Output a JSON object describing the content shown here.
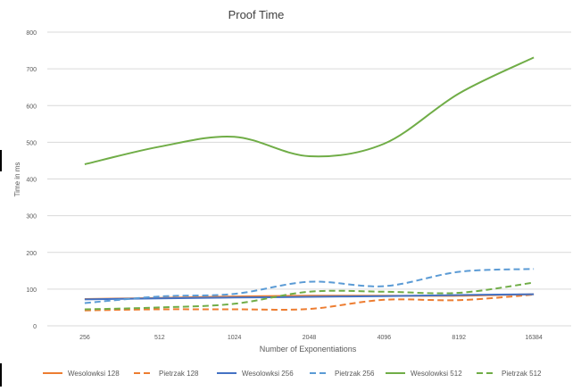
{
  "chart_data": {
    "type": "line",
    "title": "Proof Time",
    "xlabel": "Number of Exponentiations",
    "ylabel": "Time in ms",
    "categories": [
      "256",
      "512",
      "1024",
      "2048",
      "4096",
      "8192",
      "16384"
    ],
    "y_ticks": [
      "0",
      "100",
      "200",
      "300",
      "400",
      "500",
      "600",
      "700",
      "800"
    ],
    "ylim": [
      0,
      800
    ],
    "grid": true,
    "legend_position": "bottom",
    "series": [
      {
        "name": "Wesolowksi 128",
        "color": "#ed7d31",
        "dash": "solid",
        "values": [
          73,
          76,
          80,
          82,
          82,
          82,
          86
        ]
      },
      {
        "name": "Pietrzak 128",
        "color": "#ed7d31",
        "dash": "dashed",
        "values": [
          42,
          45,
          45,
          46,
          71,
          70,
          85
        ]
      },
      {
        "name": "Wesolowksi 256",
        "color": "#4472c4",
        "dash": "solid",
        "values": [
          72,
          75,
          77,
          79,
          81,
          84,
          86
        ]
      },
      {
        "name": "Pietrzak 256",
        "color": "#5b9bd5",
        "dash": "dashed",
        "values": [
          62,
          80,
          87,
          120,
          108,
          147,
          155
        ]
      },
      {
        "name": "Wesolowksi 512",
        "color": "#70ad47",
        "dash": "solid",
        "values": [
          440,
          488,
          515,
          462,
          496,
          633,
          731
        ]
      },
      {
        "name": "Pietrzak 512",
        "color": "#70ad47",
        "dash": "dashed",
        "values": [
          45,
          50,
          60,
          93,
          93,
          90,
          118
        ]
      }
    ]
  }
}
